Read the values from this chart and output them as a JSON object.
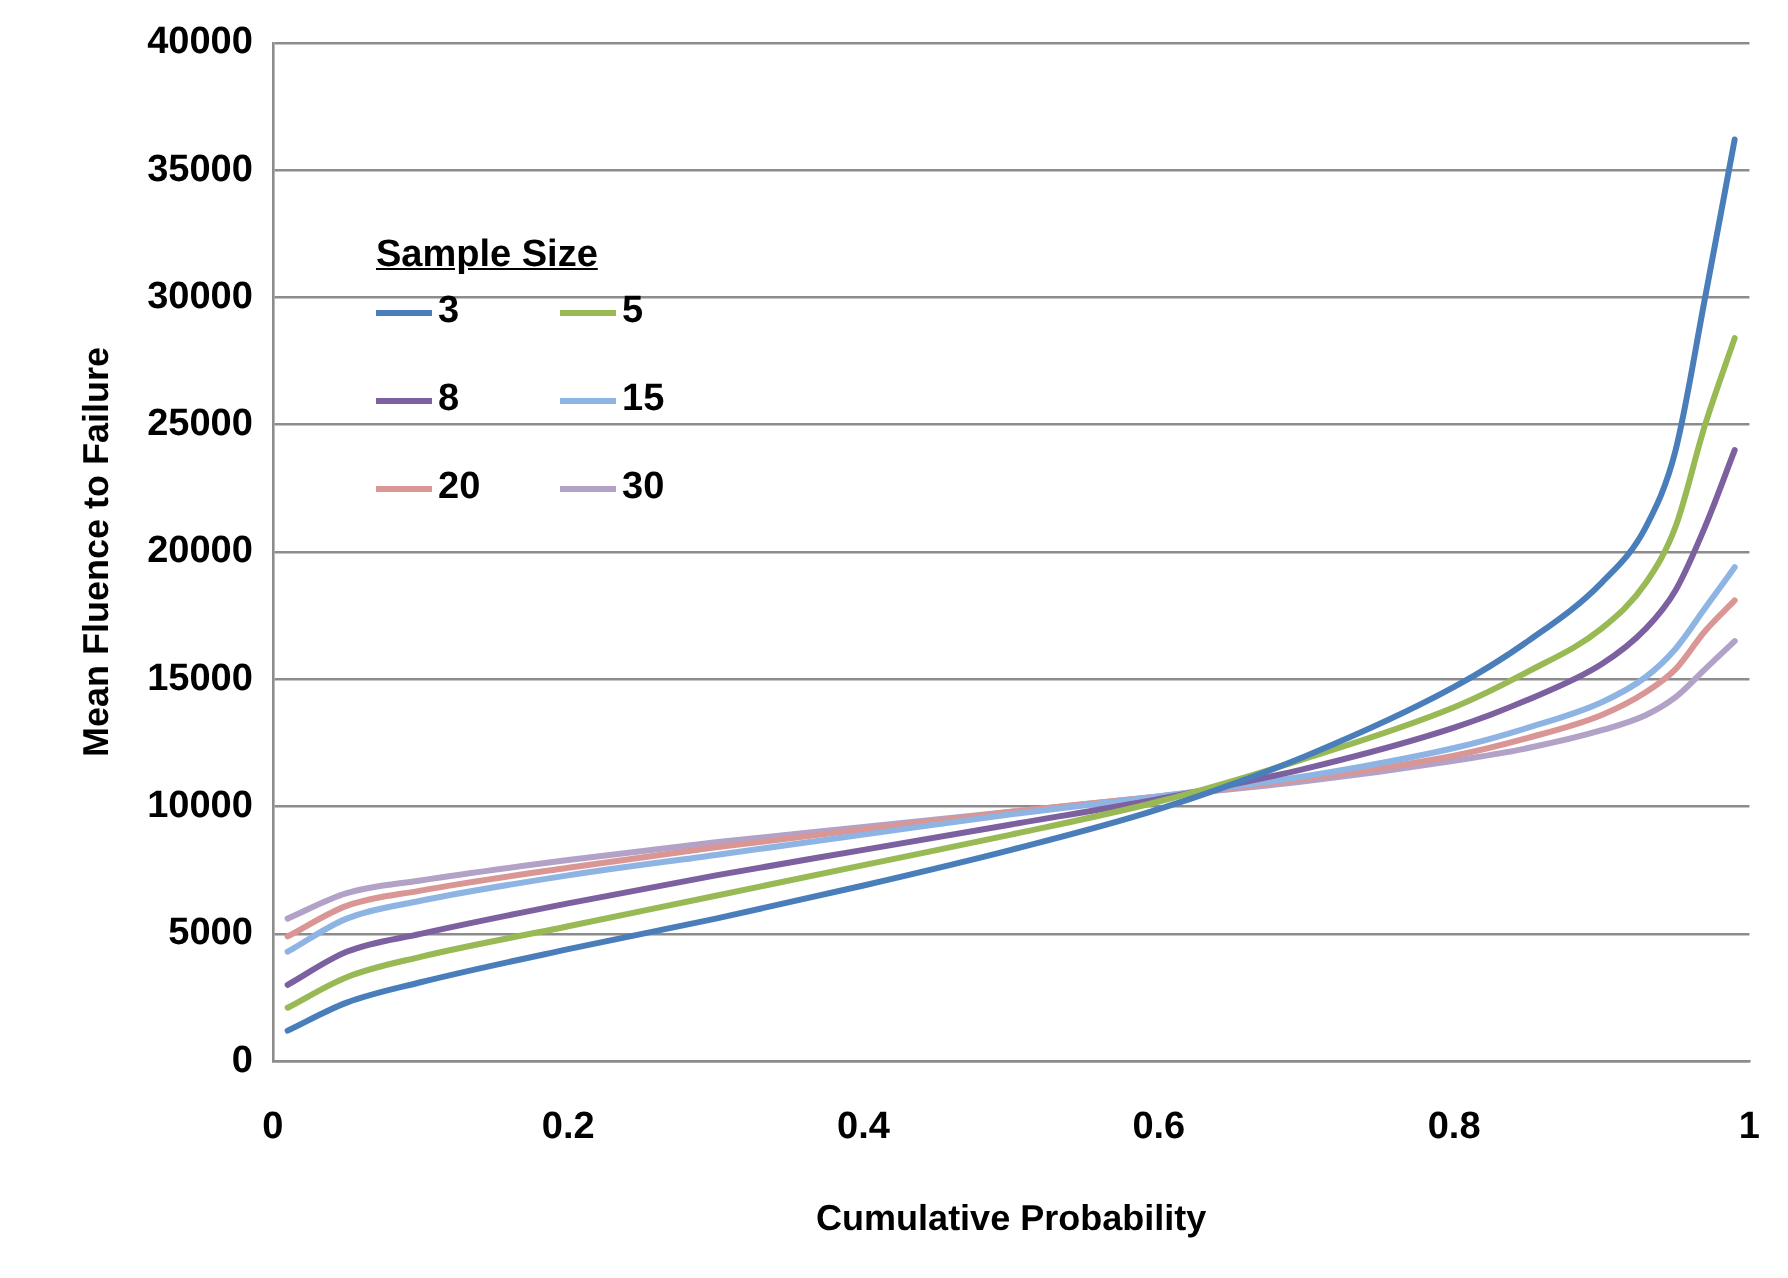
{
  "chart_data": {
    "type": "line",
    "xlabel": "Cumulative Probability",
    "ylabel": "Mean Fluence to Failure",
    "legend_title": "Sample Size",
    "x": [
      0.01,
      0.05,
      0.1,
      0.2,
      0.3,
      0.4,
      0.5,
      0.6,
      0.7,
      0.8,
      0.85,
      0.9,
      0.93,
      0.95,
      0.97,
      0.99
    ],
    "series": [
      {
        "name": "3",
        "color": "#4a7ebb",
        "values": [
          1200,
          2300,
          3100,
          4400,
          5600,
          6900,
          8300,
          9900,
          12000,
          14700,
          16500,
          18800,
          21000,
          24000,
          30000,
          36200
        ]
      },
      {
        "name": "5",
        "color": "#98b954",
        "values": [
          2100,
          3300,
          4100,
          5300,
          6500,
          7700,
          8900,
          10200,
          11900,
          13900,
          15300,
          17000,
          18800,
          21000,
          25000,
          28400
        ]
      },
      {
        "name": "8",
        "color": "#7d60a0",
        "values": [
          3000,
          4300,
          5000,
          6200,
          7300,
          8300,
          9300,
          10300,
          11500,
          13100,
          14200,
          15600,
          17000,
          18500,
          21000,
          24000
        ]
      },
      {
        "name": "15",
        "color": "#8eb4e3",
        "values": [
          4300,
          5600,
          6300,
          7300,
          8100,
          8900,
          9700,
          10400,
          11200,
          12300,
          13100,
          14100,
          15100,
          16200,
          17800,
          19400
        ]
      },
      {
        "name": "20",
        "color": "#d99694",
        "values": [
          4900,
          6100,
          6700,
          7600,
          8400,
          9100,
          9800,
          10400,
          11100,
          12000,
          12700,
          13600,
          14500,
          15400,
          16900,
          18100
        ]
      },
      {
        "name": "30",
        "color": "#b3a2c7",
        "values": [
          5600,
          6600,
          7100,
          7900,
          8600,
          9200,
          9800,
          10400,
          11000,
          11800,
          12300,
          13000,
          13600,
          14300,
          15400,
          16500
        ]
      }
    ],
    "xlim": [
      0,
      1
    ],
    "xticks": [
      0,
      {
        "value": 0.2,
        "label": "0.2"
      },
      {
        "value": 0.4,
        "label": "0.4"
      },
      {
        "value": 0.6,
        "label": "0.6"
      },
      {
        "value": 0.8,
        "label": "0.8"
      },
      1
    ],
    "ylim": [
      0,
      40000
    ],
    "yticks": [
      0,
      5000,
      10000,
      15000,
      20000,
      25000,
      30000,
      35000,
      40000
    ],
    "grid": "y",
    "legend": "top left",
    "marker": "none",
    "line_style": "solid"
  }
}
